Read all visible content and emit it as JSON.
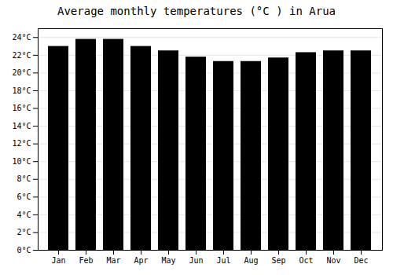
{
  "chart_data": {
    "type": "bar",
    "title": "Average monthly temperatures (°C ) in Arua",
    "categories": [
      "Jan",
      "Feb",
      "Mar",
      "Apr",
      "May",
      "Jun",
      "Jul",
      "Aug",
      "Sep",
      "Oct",
      "Nov",
      "Dec"
    ],
    "values": [
      23.0,
      23.8,
      23.8,
      23.0,
      22.5,
      21.8,
      21.3,
      21.3,
      21.7,
      22.3,
      22.5,
      22.5
    ],
    "ylim": [
      0,
      25
    ],
    "yticks": [
      {
        "value": 0,
        "label": "0°C"
      },
      {
        "value": 2,
        "label": "2°C"
      },
      {
        "value": 4,
        "label": "4°C"
      },
      {
        "value": 6,
        "label": "6°C"
      },
      {
        "value": 8,
        "label": "8°C"
      },
      {
        "value": 10,
        "label": "10°C"
      },
      {
        "value": 12,
        "label": "12°C"
      },
      {
        "value": 14,
        "label": "14°C"
      },
      {
        "value": 16,
        "label": "16°C"
      },
      {
        "value": 18,
        "label": "18°C"
      },
      {
        "value": 20,
        "label": "20°C"
      },
      {
        "value": 22,
        "label": "22°C"
      },
      {
        "value": 24,
        "label": "24°C"
      }
    ],
    "grid": true
  }
}
